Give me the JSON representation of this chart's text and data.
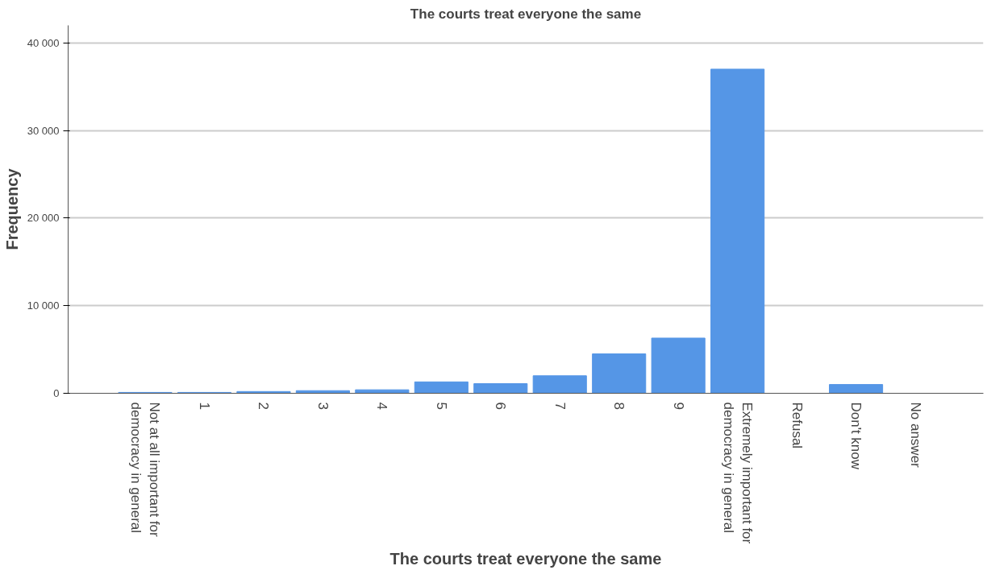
{
  "chart_data": {
    "type": "bar",
    "title": "The courts treat everyone the same",
    "xlabel": "The courts treat everyone the same",
    "ylabel": "Frequency",
    "categories": [
      "Not at all important for democracy in general",
      "1",
      "2",
      "3",
      "4",
      "5",
      "6",
      "7",
      "8",
      "9",
      "Extremely important for democracy in general",
      "Refusal",
      "Don't know",
      "No answer"
    ],
    "values": [
      100,
      100,
      200,
      300,
      400,
      1300,
      1100,
      2000,
      4500,
      6300,
      37000,
      null,
      1000,
      null
    ],
    "color": "#5596e6",
    "ylim": [
      0,
      42000
    ],
    "yticks": [
      0,
      {
        "value": 10000,
        "label": "10 000"
      },
      {
        "value": 20000,
        "label": "20 000"
      },
      {
        "value": 30000,
        "label": "30 000"
      },
      {
        "value": 40000,
        "label": "40 000"
      }
    ],
    "grid": "y"
  }
}
